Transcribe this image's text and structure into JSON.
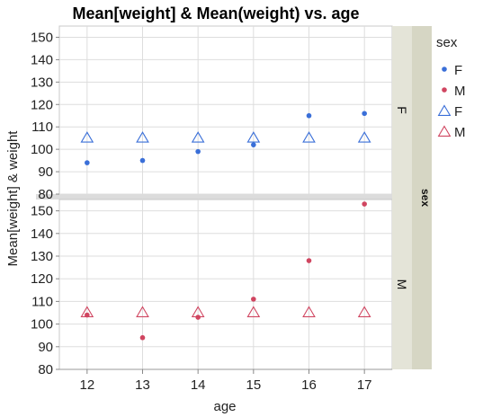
{
  "chart_data": {
    "type": "scatter",
    "title": "Mean[weight] & Mean(weight) vs. age",
    "xlabel": "age",
    "ylabel": "Mean[weight] & weight",
    "x": [
      12,
      13,
      14,
      15,
      16,
      17
    ],
    "ylim": [
      80,
      155
    ],
    "yticks": [
      80,
      90,
      100,
      110,
      120,
      130,
      140,
      150
    ],
    "grid": true,
    "group_label": "sex",
    "panels": [
      {
        "label": "F",
        "series": [
          {
            "name": "F",
            "marker": "dot",
            "color": "#3a6fd8",
            "values": [
              94,
              95,
              99,
              102,
              115,
              116
            ]
          },
          {
            "name": "F",
            "marker": "triangle",
            "color": "#3a6fd8",
            "values": [
              105,
              105,
              105,
              105,
              105,
              105
            ]
          }
        ]
      },
      {
        "label": "M",
        "series": [
          {
            "name": "M",
            "marker": "dot",
            "color": "#d04560",
            "values": [
              104,
              94,
              103,
              111,
              128,
              153
            ]
          },
          {
            "name": "M",
            "marker": "triangle",
            "color": "#d04560",
            "values": [
              105,
              105,
              105,
              105,
              105,
              105
            ]
          }
        ]
      }
    ],
    "legend": {
      "title": "sex",
      "placement": "right",
      "entries": [
        {
          "label": "F",
          "marker": "dot",
          "color": "#3a6fd8"
        },
        {
          "label": "M",
          "marker": "dot",
          "color": "#d04560"
        },
        {
          "label": "F",
          "marker": "triangle",
          "color": "#3a6fd8"
        },
        {
          "label": "M",
          "marker": "triangle",
          "color": "#d04560"
        }
      ]
    }
  }
}
